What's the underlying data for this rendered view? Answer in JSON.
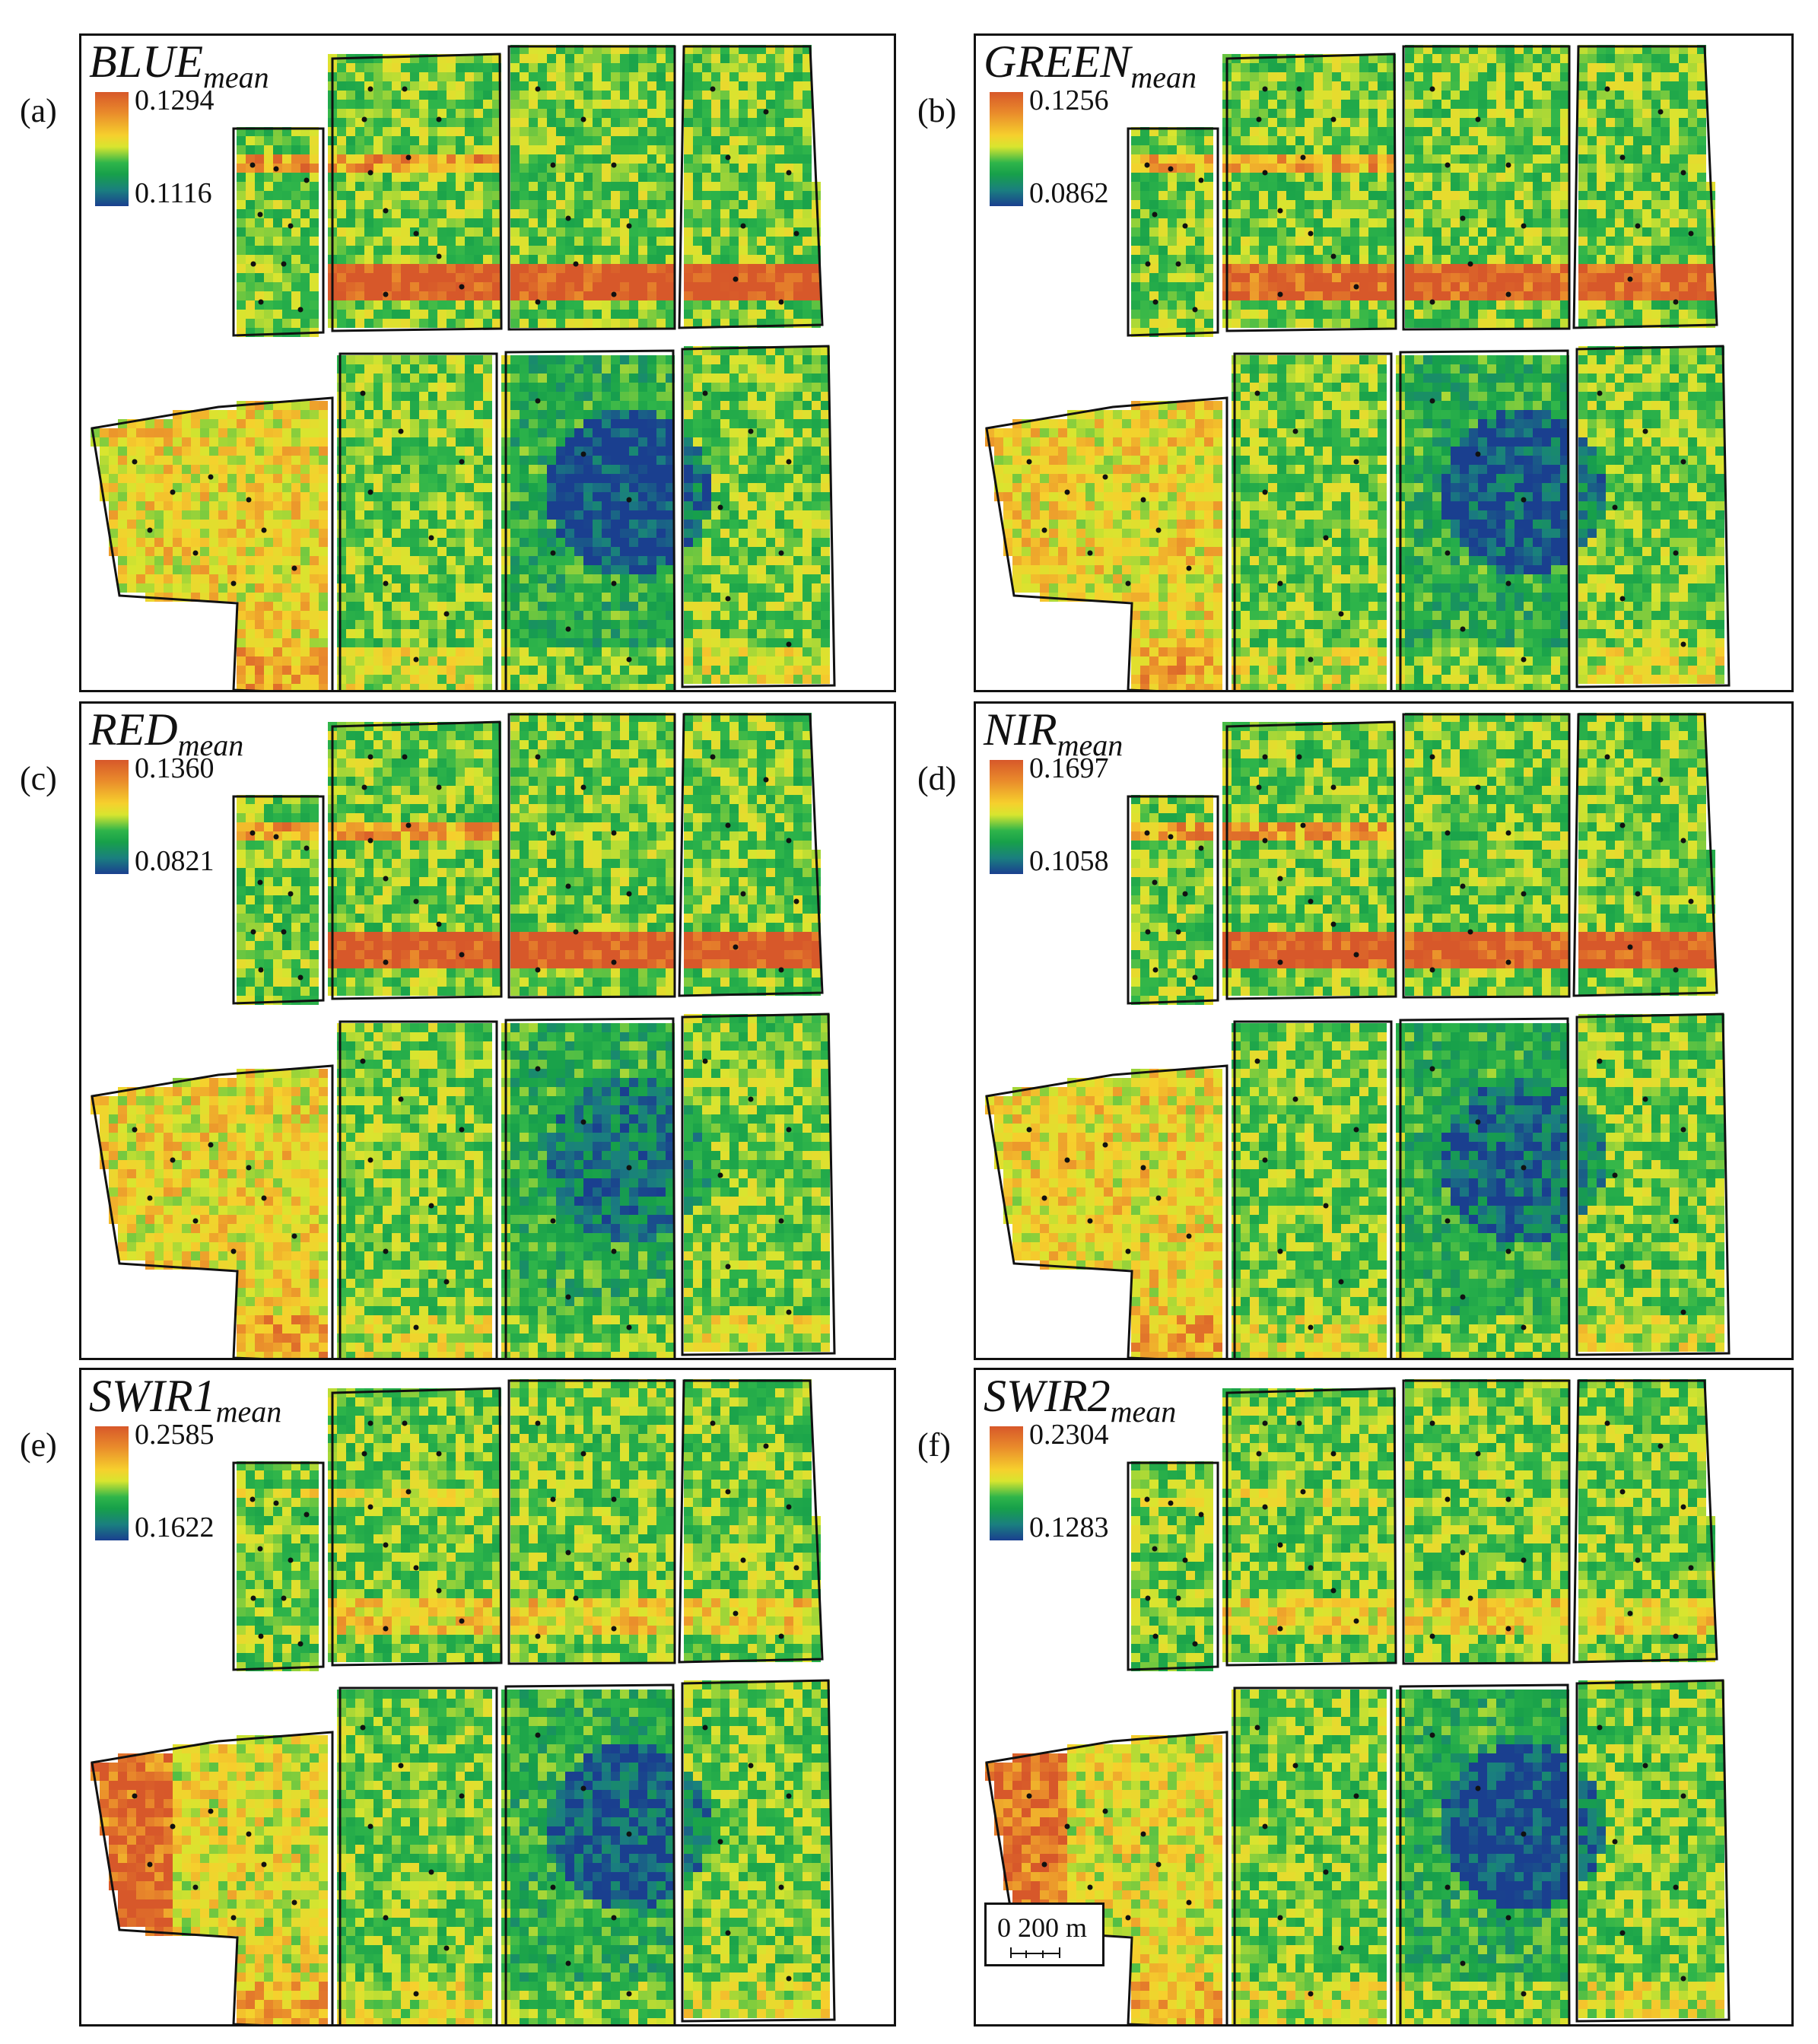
{
  "figure": {
    "panels": [
      {
        "label": "(a)",
        "title_main": "BLUE",
        "title_sub": "mean",
        "legend_max": "0.1294",
        "legend_min": "0.1116"
      },
      {
        "label": "(b)",
        "title_main": "GREEN",
        "title_sub": "mean",
        "legend_max": "0.1256",
        "legend_min": "0.0862"
      },
      {
        "label": "(c)",
        "title_main": "RED",
        "title_sub": "mean",
        "legend_max": "0.1360",
        "legend_min": "0.0821"
      },
      {
        "label": "(d)",
        "title_main": "NIR",
        "title_sub": "mean",
        "legend_max": "0.1697",
        "legend_min": "0.1058"
      },
      {
        "label": "(e)",
        "title_main": "SWIR1",
        "title_sub": "mean",
        "legend_max": "0.2585",
        "legend_min": "0.1622"
      },
      {
        "label": "(f)",
        "title_main": "SWIR2",
        "title_sub": "mean",
        "legend_max": "0.2304",
        "legend_min": "0.1283"
      }
    ],
    "colormap": [
      "#1a3f8f",
      "#1a7f7f",
      "#17a04a",
      "#2fb54a",
      "#d8e52f",
      "#f6d02d",
      "#e98a2b",
      "#d7582a"
    ],
    "scalebar": {
      "text": "0  200 m"
    }
  }
}
